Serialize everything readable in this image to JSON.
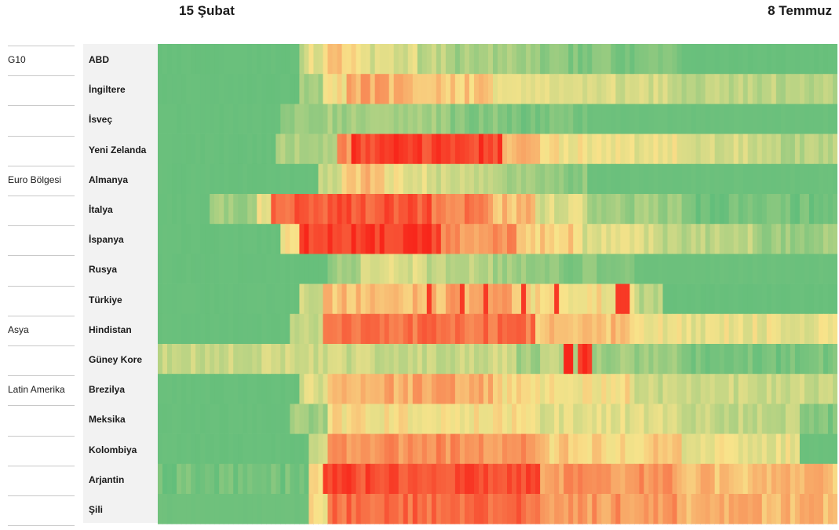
{
  "header": {
    "start_date": "15 Şubat",
    "end_date": "8 Temmuz"
  },
  "groups": [
    "G10",
    "Euro Bölgesi",
    "Asya",
    "Latin Amerika"
  ],
  "rows": [
    {
      "country": "ABD",
      "group": "G10"
    },
    {
      "country": "İngiltere",
      "group": ""
    },
    {
      "country": "İsveç",
      "group": ""
    },
    {
      "country": "Yeni Zelanda",
      "group": ""
    },
    {
      "country": "Almanya",
      "group": "Euro Bölgesi"
    },
    {
      "country": "İtalya",
      "group": ""
    },
    {
      "country": "İspanya",
      "group": ""
    },
    {
      "country": "Rusya",
      "group": ""
    },
    {
      "country": "Türkiye",
      "group": ""
    },
    {
      "country": "Hindistan",
      "group": "Asya"
    },
    {
      "country": "Güney Kore",
      "group": ""
    },
    {
      "country": "Brezilya",
      "group": "Latin Amerika"
    },
    {
      "country": "Meksika",
      "group": ""
    },
    {
      "country": "Kolombiya",
      "group": ""
    },
    {
      "country": "Arjantin",
      "group": ""
    },
    {
      "country": "Şili",
      "group": ""
    }
  ],
  "chart_data": {
    "type": "heatmap",
    "x_start": "15 Şubat",
    "x_end": "8 Temmuz",
    "x_count": 144,
    "y_categories": [
      "ABD",
      "İngiltere",
      "İsveç",
      "Yeni Zelanda",
      "Almanya",
      "İtalya",
      "İspanya",
      "Rusya",
      "Türkiye",
      "Hindistan",
      "Güney Kore",
      "Brezilya",
      "Meksika",
      "Kolombiya",
      "Arjantin",
      "Şili"
    ],
    "value_scale": [
      0,
      1
    ],
    "colors": {
      "low": "#63be7b",
      "mid": "#f8e38a",
      "high": "#f8261a"
    },
    "segments": [
      [
        [
          0,
          29,
          0.02
        ],
        [
          30,
          31,
          0.35
        ],
        [
          32,
          35,
          0.45
        ],
        [
          36,
          38,
          0.55
        ],
        [
          39,
          44,
          0.5
        ],
        [
          45,
          54,
          0.4
        ],
        [
          55,
          60,
          0.3
        ],
        [
          61,
          80,
          0.22
        ],
        [
          81,
          95,
          0.12
        ],
        [
          96,
          110,
          0.06
        ],
        [
          111,
          143,
          0.02
        ]
      ],
      [
        [
          0,
          29,
          0.02
        ],
        [
          30,
          34,
          0.25
        ],
        [
          35,
          39,
          0.5
        ],
        [
          40,
          47,
          0.66
        ],
        [
          48,
          60,
          0.62
        ],
        [
          61,
          70,
          0.58
        ],
        [
          71,
          84,
          0.45
        ],
        [
          85,
          96,
          0.42
        ],
        [
          97,
          107,
          0.38
        ],
        [
          108,
          130,
          0.3
        ],
        [
          131,
          143,
          0.28
        ]
      ],
      [
        [
          0,
          25,
          0.02
        ],
        [
          26,
          33,
          0.18
        ],
        [
          34,
          47,
          0.22
        ],
        [
          48,
          60,
          0.2
        ],
        [
          61,
          75,
          0.12
        ],
        [
          76,
          90,
          0.06
        ],
        [
          91,
          143,
          0.03
        ]
      ],
      [
        [
          0,
          24,
          0.02
        ],
        [
          25,
          37,
          0.25
        ],
        [
          38,
          40,
          0.7
        ],
        [
          41,
          72,
          0.92
        ],
        [
          73,
          80,
          0.6
        ],
        [
          81,
          95,
          0.5
        ],
        [
          96,
          110,
          0.45
        ],
        [
          111,
          130,
          0.38
        ],
        [
          131,
          143,
          0.28
        ]
      ],
      [
        [
          0,
          33,
          0.02
        ],
        [
          34,
          38,
          0.35
        ],
        [
          39,
          47,
          0.6
        ],
        [
          48,
          56,
          0.45
        ],
        [
          57,
          72,
          0.35
        ],
        [
          73,
          80,
          0.25
        ],
        [
          81,
          90,
          0.15
        ],
        [
          91,
          143,
          0.03
        ]
      ],
      [
        [
          0,
          10,
          0.02
        ],
        [
          11,
          20,
          0.2
        ],
        [
          21,
          23,
          0.45
        ],
        [
          24,
          28,
          0.8
        ],
        [
          29,
          57,
          0.87
        ],
        [
          58,
          69,
          0.78
        ],
        [
          70,
          79,
          0.6
        ],
        [
          80,
          90,
          0.4
        ],
        [
          91,
          110,
          0.2
        ],
        [
          111,
          143,
          0.06
        ]
      ],
      [
        [
          0,
          25,
          0.02
        ],
        [
          26,
          29,
          0.5
        ],
        [
          30,
          59,
          0.95
        ],
        [
          60,
          75,
          0.72
        ],
        [
          76,
          89,
          0.55
        ],
        [
          90,
          105,
          0.4
        ],
        [
          106,
          125,
          0.3
        ],
        [
          126,
          143,
          0.2
        ]
      ],
      [
        [
          0,
          35,
          0.02
        ],
        [
          36,
          42,
          0.2
        ],
        [
          43,
          56,
          0.4
        ],
        [
          57,
          70,
          0.3
        ],
        [
          71,
          84,
          0.2
        ],
        [
          85,
          100,
          0.12
        ],
        [
          101,
          143,
          0.03
        ]
      ],
      [
        [
          0,
          29,
          0.02
        ],
        [
          30,
          34,
          0.35
        ],
        [
          35,
          60,
          0.6
        ],
        [
          61,
          74,
          0.65
        ],
        [
          75,
          100,
          0.5
        ],
        [
          101,
          106,
          0.3
        ],
        [
          107,
          143,
          0.02
        ]
      ],
      [
        [
          0,
          27,
          0.02
        ],
        [
          28,
          34,
          0.35
        ],
        [
          35,
          79,
          0.8
        ],
        [
          80,
          100,
          0.6
        ],
        [
          101,
          143,
          0.45
        ]
      ],
      [
        [
          0,
          75,
          0.35
        ],
        [
          76,
          80,
          0.22
        ],
        [
          81,
          88,
          0.3
        ],
        [
          89,
          91,
          1.0
        ],
        [
          92,
          110,
          0.2
        ],
        [
          111,
          143,
          0.08
        ]
      ],
      [
        [
          0,
          29,
          0.02
        ],
        [
          30,
          35,
          0.4
        ],
        [
          36,
          70,
          0.65
        ],
        [
          71,
          100,
          0.5
        ],
        [
          101,
          143,
          0.35
        ]
      ],
      [
        [
          0,
          27,
          0.02
        ],
        [
          28,
          35,
          0.2
        ],
        [
          36,
          80,
          0.5
        ],
        [
          81,
          110,
          0.42
        ],
        [
          111,
          135,
          0.32
        ],
        [
          136,
          143,
          0.1
        ]
      ],
      [
        [
          0,
          31,
          0.02
        ],
        [
          32,
          35,
          0.4
        ],
        [
          36,
          80,
          0.72
        ],
        [
          81,
          110,
          0.55
        ],
        [
          111,
          135,
          0.45
        ],
        [
          136,
          143,
          0.03
        ]
      ],
      [
        [
          0,
          31,
          0.06
        ],
        [
          32,
          34,
          0.5
        ],
        [
          35,
          80,
          0.9
        ],
        [
          81,
          110,
          0.7
        ],
        [
          111,
          143,
          0.6
        ]
      ],
      [
        [
          0,
          31,
          0.04
        ],
        [
          32,
          35,
          0.5
        ],
        [
          36,
          80,
          0.82
        ],
        [
          81,
          110,
          0.7
        ],
        [
          111,
          143,
          0.62
        ]
      ]
    ],
    "highlights": [
      {
        "row": "Türkiye",
        "columns": [
          57,
          64,
          69,
          77,
          84,
          97,
          98,
          99
        ],
        "value": 0.95
      },
      {
        "row": "Güney Kore",
        "columns": [
          86,
          87
        ],
        "value": 1.0
      }
    ]
  }
}
